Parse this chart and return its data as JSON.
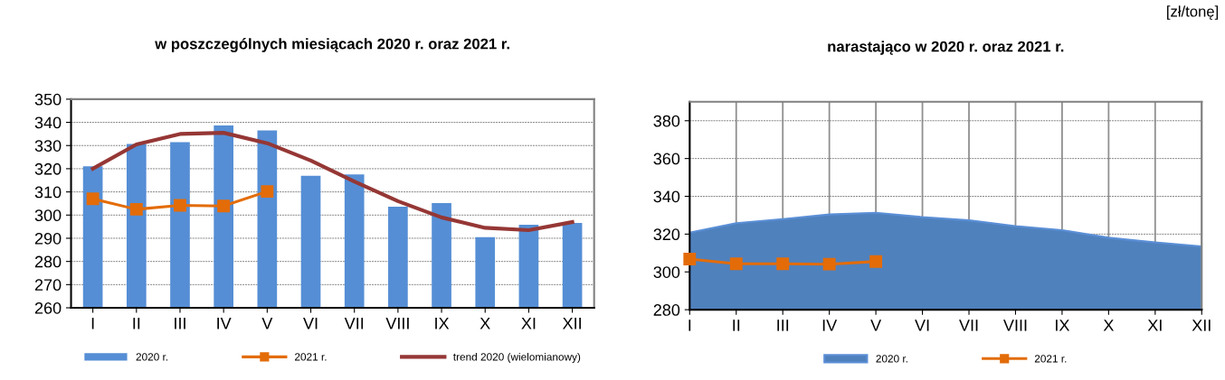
{
  "chart_data": [
    {
      "type": "bar",
      "title": "w poszczególnych miesiącach 2020 r. oraz 2021 r.",
      "categories": [
        "I",
        "II",
        "III",
        "IV",
        "V",
        "VI",
        "VII",
        "VIII",
        "IX",
        "X",
        "XI",
        "XII"
      ],
      "series": [
        {
          "name": "2020 r.",
          "type": "bar",
          "color": "#558ed5",
          "values": [
            321,
            330.7,
            331.5,
            338.7,
            336.5,
            317,
            317.5,
            303.6,
            305.2,
            290.5,
            295.8,
            296.6
          ]
        },
        {
          "name": "2021 r.",
          "type": "line",
          "color": "#e36c09",
          "marker": "square",
          "values": [
            307,
            302.5,
            304.2,
            303.9,
            310.2,
            null,
            null,
            null,
            null,
            null,
            null,
            null
          ]
        },
        {
          "name": "trend 2020 (wielomianowy)",
          "type": "line",
          "color": "#953735",
          "marker": "none",
          "values": [
            320,
            330.5,
            335,
            335.5,
            331,
            323.5,
            314.5,
            306,
            299,
            294.5,
            293.5,
            297
          ]
        }
      ],
      "ylim": [
        260,
        350
      ],
      "yticks": [
        260,
        270,
        280,
        290,
        300,
        310,
        320,
        330,
        340,
        350
      ],
      "grid": "y",
      "legend": "bottom"
    },
    {
      "type": "area",
      "title": "narastająco w 2020 r. oraz 2021 r.",
      "categories": [
        "I",
        "II",
        "III",
        "IV",
        "V",
        "VI",
        "VII",
        "VIII",
        "IX",
        "X",
        "XI",
        "XII"
      ],
      "series": [
        {
          "name": "2020 r.",
          "type": "area",
          "color": "#4f81bd",
          "values": [
            320.8,
            325.8,
            327.9,
            330.4,
            331.3,
            329,
            327.3,
            324.2,
            322.1,
            318.1,
            315.6,
            313.5
          ]
        },
        {
          "name": "2021 r.",
          "type": "line",
          "color": "#e36c09",
          "marker": "square",
          "values": [
            306.8,
            304.3,
            304.3,
            304.1,
            305.5,
            null,
            null,
            null,
            null,
            null,
            null,
            null
          ]
        }
      ],
      "ylim": [
        280,
        390
      ],
      "yticks": [
        280,
        300,
        320,
        340,
        360,
        380
      ],
      "grid": true,
      "legend": "bottom",
      "annotations": [
        "[zł/tonę]"
      ]
    }
  ]
}
